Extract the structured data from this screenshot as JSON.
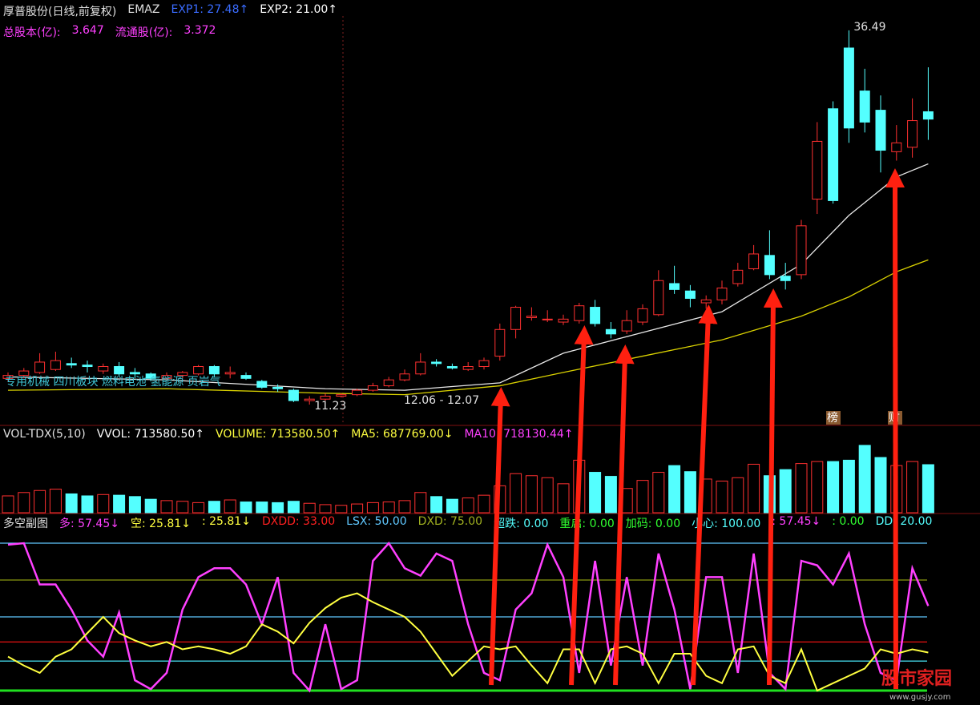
{
  "chart_data": [
    {
      "type": "candlestick",
      "title": "厚普股份(日线,前复权)",
      "indicator": "EMAZ",
      "legend": [
        {
          "label": "EXP1: 27.48↑",
          "color": "#3a6cff"
        },
        {
          "label": "EXP2: 21.00↑",
          "color": "#ffffff"
        }
      ],
      "info": [
        {
          "label": "总股本(亿):",
          "color": "#ff40ff"
        },
        {
          "label": "3.647",
          "color": "#ff40ff"
        },
        {
          "label": "流通股(亿):",
          "color": "#ff40ff"
        },
        {
          "label": "3.372",
          "color": "#ff40ff"
        }
      ],
      "open": [
        13.0,
        13.2,
        13.4,
        13.6,
        14.0,
        13.9,
        13.5,
        13.8,
        13.4,
        13.3,
        13.0,
        13.2,
        13.3,
        13.8,
        13.3,
        13.2,
        12.8,
        12.4,
        12.2,
        11.5,
        11.6,
        11.8,
        11.9,
        12.2,
        12.5,
        12.9,
        13.3,
        14.1,
        13.8,
        13.6,
        13.8,
        14.5,
        16.3,
        17.1,
        17.0,
        16.8,
        16.9,
        17.8,
        16.3,
        16.2,
        16.8,
        17.3,
        19.4,
        18.9,
        18.1,
        18.3,
        19.4,
        20.4,
        21.3,
        19.9,
        20.0,
        25.1,
        31.2,
        35.3,
        32.4,
        31.1,
        28.3,
        28.6,
        31.0
      ],
      "close": [
        13.2,
        13.5,
        14.1,
        14.2,
        13.9,
        13.8,
        13.8,
        13.3,
        13.3,
        13.0,
        13.2,
        13.4,
        13.8,
        13.3,
        13.4,
        13.0,
        12.4,
        12.3,
        11.5,
        11.6,
        11.8,
        11.9,
        12.2,
        12.5,
        12.9,
        13.3,
        14.1,
        14.0,
        13.7,
        13.8,
        14.2,
        16.3,
        17.8,
        17.2,
        17.0,
        17.0,
        17.9,
        16.7,
        16.0,
        16.9,
        17.7,
        19.6,
        19.0,
        18.4,
        18.3,
        19.1,
        20.3,
        21.4,
        20.0,
        19.6,
        23.3,
        29.0,
        25.0,
        29.9,
        30.3,
        28.4,
        28.9,
        30.4,
        30.5
      ],
      "high": [
        13.4,
        13.7,
        14.7,
        14.8,
        14.4,
        14.2,
        14.0,
        14.1,
        13.7,
        13.4,
        13.4,
        13.5,
        13.9,
        13.9,
        13.8,
        13.4,
        12.9,
        12.6,
        12.3,
        11.8,
        12.0,
        12.0,
        12.3,
        12.7,
        13.1,
        13.6,
        14.7,
        14.3,
        14.0,
        14.1,
        14.4,
        16.7,
        17.9,
        17.8,
        17.6,
        17.3,
        18.1,
        18.3,
        16.8,
        17.6,
        18.0,
        20.3,
        20.6,
        19.3,
        18.6,
        19.6,
        20.8,
        22.0,
        23.0,
        20.8,
        23.7,
        30.3,
        31.7,
        36.49,
        33.9,
        32.1,
        30.1,
        31.9,
        34.0
      ],
      "low": [
        12.8,
        13.0,
        13.3,
        13.5,
        13.7,
        13.4,
        13.3,
        13.1,
        13.0,
        12.8,
        12.9,
        13.0,
        13.2,
        13.1,
        13.0,
        12.9,
        12.3,
        12.1,
        11.4,
        11.23,
        11.5,
        11.7,
        11.8,
        12.1,
        12.4,
        12.8,
        13.2,
        13.8,
        13.6,
        13.5,
        13.6,
        14.2,
        15.7,
        16.9,
        16.8,
        16.6,
        16.7,
        16.5,
        15.7,
        16.0,
        16.6,
        17.2,
        18.7,
        17.8,
        17.7,
        18.0,
        19.2,
        20.3,
        19.7,
        19.0,
        19.7,
        24.1,
        24.8,
        28.9,
        29.6,
        26.9,
        27.7,
        27.9,
        29.1
      ],
      "up_color": "#ff3030",
      "down_color": "#54ffff",
      "ylim": [
        9.88,
        37.46
      ],
      "series": [
        {
          "name": "EXP1",
          "color": "#e8e8e8",
          "x": [
            0,
            10,
            20,
            25,
            31,
            35,
            40,
            45,
            50,
            53,
            56,
            58
          ],
          "values": [
            13.1,
            12.9,
            12.3,
            12.2,
            12.7,
            14.7,
            16.1,
            17.5,
            20.7,
            24.0,
            26.6,
            27.48
          ]
        },
        {
          "name": "EXP2",
          "color": "#d8d000",
          "x": [
            0,
            10,
            20,
            25,
            31,
            35,
            40,
            45,
            50,
            53,
            56,
            58
          ],
          "values": [
            12.2,
            12.3,
            12.0,
            11.9,
            12.5,
            13.4,
            14.5,
            15.6,
            17.2,
            18.5,
            20.2,
            21.0
          ]
        }
      ],
      "high_mark": 36.49,
      "low_mark": 11.23,
      "range": "12.06 - 12.07",
      "sectors": "专用机械 四川板块 燃料电池 氢能源 页岩气",
      "badges": [
        "榜",
        "财"
      ]
    },
    {
      "type": "bar",
      "title": "VOL-TDX(5,10)",
      "legend": [
        {
          "label": "VVOL: 713580.50↑",
          "color": "#ffffff"
        },
        {
          "label": "VOLUME: 713580.50↑",
          "color": "#ffff40"
        },
        {
          "label": "MA5: 687769.00↓",
          "color": "#ffff40"
        },
        {
          "label": "MA10: 718130.44↑",
          "color": "#ff40ff"
        }
      ],
      "values": [
        250000,
        300000,
        330000,
        350000,
        280000,
        250000,
        270000,
        260000,
        240000,
        200000,
        180000,
        170000,
        150000,
        170000,
        190000,
        160000,
        160000,
        150000,
        170000,
        140000,
        120000,
        110000,
        130000,
        150000,
        160000,
        180000,
        300000,
        240000,
        200000,
        220000,
        260000,
        400000,
        580000,
        550000,
        520000,
        430000,
        780000,
        600000,
        540000,
        360000,
        480000,
        600000,
        700000,
        610000,
        500000,
        470000,
        520000,
        720000,
        550000,
        640000,
        730000,
        760000,
        760000,
        780000,
        1000000,
        820000,
        700000,
        760000,
        713580.5
      ],
      "ylim": [
        0,
        1189300
      ]
    },
    {
      "type": "line",
      "title": "多空副图",
      "legend": [
        {
          "label": "多: 57.45↓",
          "color": "#ff40ff"
        },
        {
          "label": "空: 25.81↓",
          "color": "#ffff40"
        },
        {
          "label": ": 25.81↓",
          "color": "#ffff40"
        },
        {
          "label": "DXDD: 33.00",
          "color": "#ff2020"
        },
        {
          "label": "LSX: 50.00",
          "color": "#60c8ff"
        },
        {
          "label": "DXD: 75.00",
          "color": "#a0b020"
        },
        {
          "label": "超跌: 0.00",
          "color": "#54ffff"
        },
        {
          "label": "重启: 0.00",
          "color": "#30ff30"
        },
        {
          "label": "加码: 0.00",
          "color": "#30ff30"
        },
        {
          "label": "小心: 100.00",
          "color": "#54ffff"
        },
        {
          "label": ": 57.45↓",
          "color": "#ff40ff"
        },
        {
          "label": ": 0.00",
          "color": "#30ff30"
        },
        {
          "label": "DD: 20.00",
          "color": "#54ffff"
        }
      ],
      "ylim": [
        -4.35,
        109.8
      ],
      "levels": [
        {
          "value": 100,
          "color": "#60c8ff"
        },
        {
          "value": 75,
          "color": "#8a9a10"
        },
        {
          "value": 50,
          "color": "#60c8ff"
        },
        {
          "value": 33,
          "color": "#d01010"
        },
        {
          "value": 20,
          "color": "#40d0e0"
        },
        {
          "value": 0,
          "color": "#20e020"
        }
      ],
      "series": [
        {
          "name": "多",
          "color": "#ff40ff",
          "values": [
            99,
            100,
            72,
            72,
            55,
            34,
            23,
            53,
            7,
            1,
            12,
            55,
            77,
            83,
            83,
            72,
            45,
            77,
            12,
            0,
            45,
            1,
            7,
            88,
            100,
            83,
            78,
            93,
            88,
            45,
            12,
            7,
            55,
            66,
            99,
            77,
            12,
            88,
            17,
            77,
            17,
            93,
            55,
            1,
            77,
            77,
            12,
            93,
            12,
            1,
            88,
            85,
            72,
            93,
            45,
            12,
            7,
            83,
            57.45
          ]
        },
        {
          "name": "空",
          "color": "#ffff40",
          "values": [
            23,
            17,
            12,
            23,
            28,
            39,
            50,
            39,
            34,
            30,
            33,
            28,
            30,
            28,
            25,
            30,
            45,
            40,
            32,
            46,
            56,
            63,
            66,
            60,
            55,
            50,
            40,
            25,
            10,
            20,
            30,
            28,
            30,
            17,
            5,
            28,
            28,
            5,
            28,
            30,
            25,
            5,
            25,
            25,
            10,
            5,
            28,
            30,
            10,
            5,
            28,
            0,
            5,
            10,
            15,
            28,
            25,
            28,
            25.81
          ]
        }
      ]
    },
    {
      "type": "watermark",
      "title": "股市家园",
      "url": "www.gusjy.com"
    }
  ]
}
